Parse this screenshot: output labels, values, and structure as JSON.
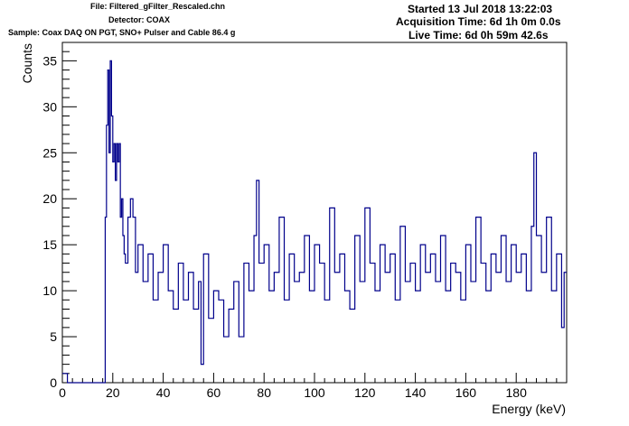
{
  "header": {
    "file": "File: Filtered_gFilter_Rescaled.chn",
    "detector": "Detector: COAX",
    "sample": "Sample: Coax DAQ ON PGT, SNO+ Pulser and Cable 86.4 g",
    "started": "Started 13 Jul 2018 13:22:03",
    "acquisition": "Acquisition Time: 6d 1h 0m 0.0s",
    "live": "Live Time: 6d 0h 59m 42.6s"
  },
  "chart_data": {
    "type": "step",
    "title": "",
    "xlabel": "Energy (keV)",
    "ylabel": "Counts",
    "xlim": [
      0,
      200
    ],
    "ylim": [
      0,
      37
    ],
    "x_ticks": [
      0,
      20,
      40,
      60,
      80,
      100,
      120,
      140,
      160,
      180
    ],
    "y_ticks": [
      0,
      5,
      10,
      15,
      20,
      25,
      30,
      35
    ],
    "line_color": "#00008b",
    "grid": false,
    "legend": "none",
    "x": [
      0,
      2,
      4,
      6,
      8,
      10,
      12,
      14,
      16,
      17,
      17.5,
      18,
      18.5,
      19,
      19.5,
      20,
      20.5,
      21,
      21.5,
      22,
      22.5,
      23,
      23.5,
      24,
      24.5,
      25,
      26,
      27,
      28,
      29,
      30,
      32,
      34,
      36,
      38,
      40,
      42,
      44,
      46,
      48,
      50,
      52,
      54,
      55,
      56,
      58,
      60,
      62,
      64,
      66,
      68,
      70,
      72,
      74,
      76,
      77,
      78,
      80,
      82,
      84,
      86,
      88,
      90,
      92,
      94,
      96,
      98,
      100,
      102,
      104,
      106,
      108,
      110,
      112,
      114,
      116,
      118,
      120,
      122,
      124,
      126,
      128,
      130,
      132,
      134,
      136,
      138,
      140,
      142,
      144,
      146,
      148,
      150,
      152,
      154,
      156,
      158,
      160,
      162,
      164,
      166,
      168,
      170,
      172,
      174,
      176,
      178,
      180,
      182,
      184,
      186,
      187,
      188,
      190,
      192,
      194,
      196,
      198,
      199
    ],
    "y": [
      1,
      0,
      0,
      0,
      0,
      0,
      0,
      0,
      0,
      18,
      28,
      34,
      25,
      35,
      29,
      24,
      26,
      22,
      26,
      24,
      26,
      18,
      20,
      16,
      14,
      13,
      18,
      20,
      18,
      12,
      15,
      11,
      14,
      9,
      12,
      15,
      10,
      8,
      13,
      9,
      12,
      8,
      11,
      2,
      14,
      7,
      10,
      9,
      5,
      8,
      11,
      5,
      13,
      10,
      16,
      22,
      13,
      15,
      10,
      12,
      18,
      9,
      14,
      11,
      12,
      16,
      10,
      15,
      13,
      9,
      19,
      12,
      14,
      10,
      8,
      16,
      11,
      19,
      13,
      10,
      15,
      12,
      14,
      9,
      17,
      11,
      13,
      10,
      15,
      12,
      14,
      11,
      16,
      10,
      13,
      12,
      9,
      15,
      11,
      18,
      13,
      10,
      14,
      12,
      16,
      11,
      15,
      12,
      14,
      10,
      17,
      25,
      16,
      12,
      18,
      10,
      14,
      6,
      12
    ]
  }
}
